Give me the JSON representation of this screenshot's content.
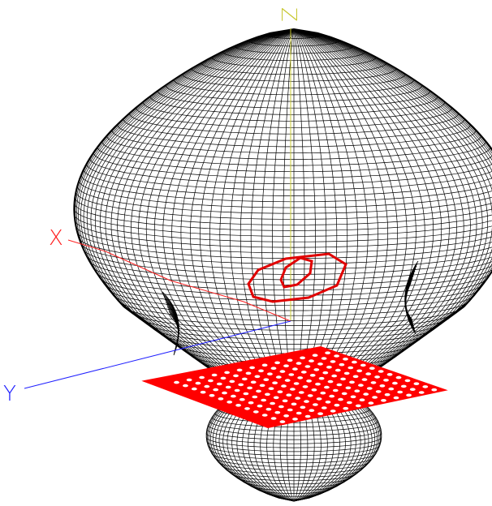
{
  "viewport": {
    "background": "#ffffff",
    "mesh_color": "#000000"
  },
  "axes": [
    {
      "id": "x",
      "label": "X",
      "color": "#ff2020"
    },
    {
      "id": "y",
      "label": "Y",
      "color": "#2020ff"
    },
    {
      "id": "z",
      "label": "Z",
      "color": "#c8c832"
    }
  ],
  "overlays": {
    "ring_color": "#e00000",
    "plate_color": "#ff0000"
  }
}
